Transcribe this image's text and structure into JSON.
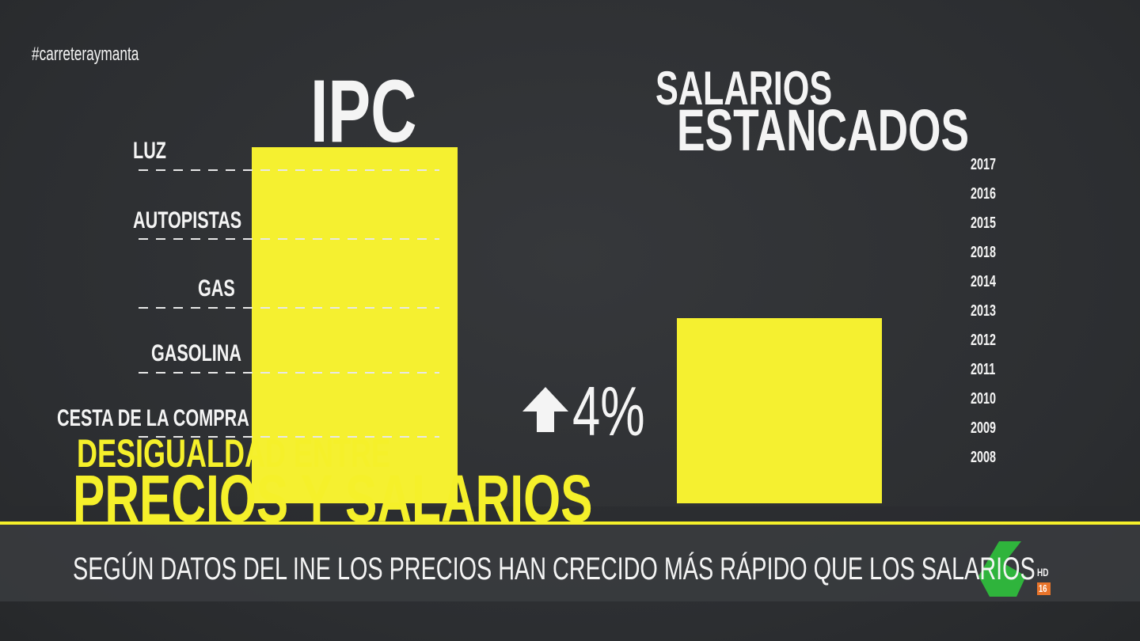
{
  "hashtag": "#carreteraymanta",
  "ipc": {
    "title": "IPC",
    "items": [
      "LUZ",
      "AUTOPISTAS",
      "GAS",
      "GASOLINA",
      "CESTA DE LA COMPRA"
    ]
  },
  "salarios": {
    "title_line1": "SALARIOS",
    "title_line2": "ESTANCADOS",
    "change": "4%",
    "years": [
      "2017",
      "2016",
      "2015",
      "2018",
      "2014",
      "2013",
      "2012",
      "2011",
      "2010",
      "2009",
      "2008"
    ]
  },
  "lower_third": {
    "kicker": "DESIGUALDAD ENTRE",
    "headline": "PRECIOS Y SALARIOS",
    "ticker": "SEGÚN DATOS DEL INE LOS PRECIOS HAN CRECIDO MÁS RÁPIDO QUE LOS SALARIOS"
  },
  "logo": {
    "mark": "6",
    "hd": "HD",
    "rating": "16"
  }
}
